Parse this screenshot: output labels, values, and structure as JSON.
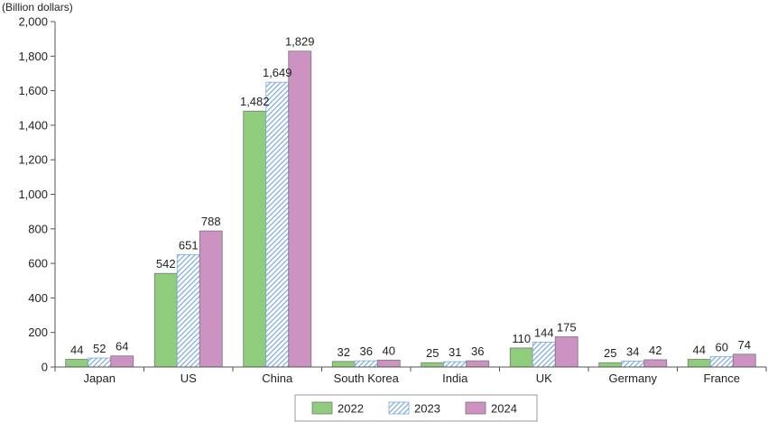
{
  "chart_data": {
    "type": "bar",
    "unit_label": "(Billion dollars)",
    "categories": [
      "Japan",
      "US",
      "China",
      "South Korea",
      "India",
      "UK",
      "Germany",
      "France"
    ],
    "series": [
      {
        "name": "2022",
        "values": [
          44,
          542,
          1482,
          32,
          25,
          110,
          25,
          44
        ],
        "value_labels": [
          "44",
          "542",
          "1,482",
          "32",
          "25",
          "110",
          "25",
          "44"
        ],
        "color": "#8fcc7c",
        "pattern": "solid"
      },
      {
        "name": "2023",
        "values": [
          52,
          651,
          1649,
          36,
          31,
          144,
          34,
          60
        ],
        "value_labels": [
          "52",
          "651",
          "1,649",
          "36",
          "31",
          "144",
          "34",
          "60"
        ],
        "color": "#a9c8ec",
        "pattern": "hatched"
      },
      {
        "name": "2024",
        "values": [
          64,
          788,
          1829,
          40,
          36,
          175,
          42,
          74
        ],
        "value_labels": [
          "64",
          "788",
          "1,829",
          "40",
          "36",
          "175",
          "42",
          "74"
        ],
        "color": "#cc92c2",
        "pattern": "solid"
      }
    ],
    "ylim": [
      0,
      2000
    ],
    "yticks": [
      0,
      200,
      400,
      600,
      800,
      1000,
      1200,
      1400,
      1600,
      1800,
      2000
    ],
    "ytick_labels": [
      "0",
      "200",
      "400",
      "600",
      "800",
      "1,000",
      "1,200",
      "1,400",
      "1,600",
      "1,800",
      "2,000"
    ],
    "grid": false,
    "legend_position": "bottom-center"
  }
}
